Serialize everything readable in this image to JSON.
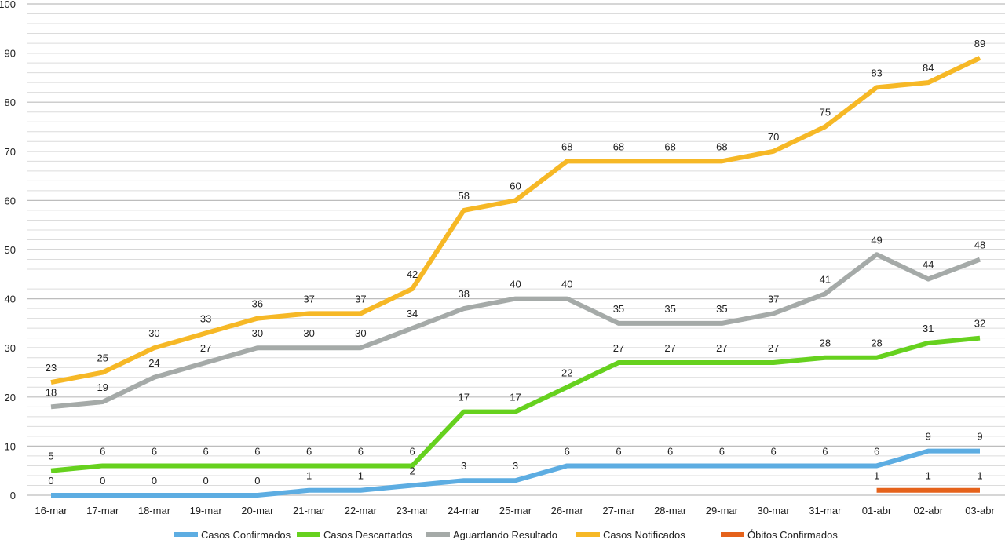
{
  "chart_data": {
    "type": "line",
    "title": "",
    "xlabel": "",
    "ylabel": "",
    "ylim": [
      0,
      100
    ],
    "yticks": [
      0,
      10,
      20,
      30,
      40,
      50,
      60,
      70,
      80,
      90,
      100
    ],
    "grid": "on",
    "legend_position": "bottom",
    "categories": [
      "16-mar",
      "17-mar",
      "18-mar",
      "19-mar",
      "20-mar",
      "21-mar",
      "22-mar",
      "23-mar",
      "24-mar",
      "25-mar",
      "26-mar",
      "27-mar",
      "28-mar",
      "29-mar",
      "30-mar",
      "31-mar",
      "01-abr",
      "02-abr",
      "03-abr"
    ],
    "series": [
      {
        "name": "Casos Confirmados",
        "color": "#5dade2",
        "values": [
          0,
          0,
          0,
          0,
          0,
          1,
          1,
          2,
          3,
          3,
          6,
          6,
          6,
          6,
          6,
          6,
          6,
          9,
          9
        ],
        "labels": [
          "0",
          "0",
          "0",
          "0",
          "0",
          "1",
          "1",
          "2",
          "3",
          "3",
          "6",
          "6",
          "6",
          "6",
          "6",
          "6",
          "6",
          "9",
          "9"
        ]
      },
      {
        "name": "Casos Descartados",
        "color": "#66d11e",
        "values": [
          5,
          6,
          6,
          6,
          6,
          6,
          6,
          6,
          17,
          17,
          22,
          27,
          27,
          27,
          27,
          28,
          28,
          31,
          32
        ],
        "labels": [
          "5",
          "6",
          "6",
          "6",
          "6",
          "6",
          "6",
          "6",
          "17",
          "17",
          "22",
          "27",
          "27",
          "27",
          "27",
          "28",
          "28",
          "31",
          "32"
        ]
      },
      {
        "name": "Aguardando Resultado",
        "color": "#a5aaa8",
        "values": [
          18,
          19,
          24,
          27,
          30,
          30,
          30,
          34,
          38,
          40,
          40,
          35,
          35,
          35,
          37,
          41,
          49,
          44,
          48
        ],
        "labels": [
          "18",
          "19",
          "24",
          "27",
          "30",
          "30",
          "30",
          "34",
          "38",
          "40",
          "40",
          "35",
          "35",
          "35",
          "37",
          "41",
          "49",
          "44",
          "48"
        ]
      },
      {
        "name": "Casos Notificados",
        "color": "#f6b826",
        "values": [
          23,
          25,
          30,
          33,
          36,
          37,
          37,
          42,
          58,
          60,
          68,
          68,
          68,
          68,
          70,
          75,
          83,
          84,
          89
        ],
        "labels": [
          "23",
          "25",
          "30",
          "33",
          "36",
          "37",
          "37",
          "42",
          "58",
          "60",
          "68",
          "68",
          "68",
          "68",
          "70",
          "75",
          "83",
          "84",
          "89"
        ]
      },
      {
        "name": "Óbitos Confirmados",
        "color": "#e5621b",
        "values": [
          null,
          null,
          null,
          null,
          null,
          null,
          null,
          null,
          null,
          null,
          null,
          null,
          null,
          null,
          null,
          null,
          1,
          1,
          1
        ],
        "labels": [
          "",
          "",
          "",
          "",
          "",
          "",
          "",
          "",
          "",
          "",
          "",
          "",
          "",
          "",
          "",
          "",
          "1",
          "1",
          "1"
        ]
      }
    ]
  }
}
